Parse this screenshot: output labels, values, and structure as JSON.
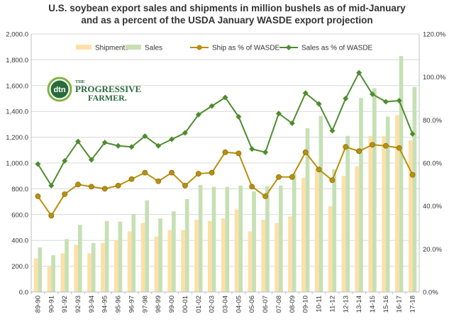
{
  "chart_data": {
    "type": "bar",
    "title_lines": [
      "U.S. soybean export sales and shipments in million bushels as of mid-January",
      "and as a percent of the USDA January WASDE  export projection"
    ],
    "categories": [
      "89-90",
      "90-91",
      "91-92",
      "92-93",
      "93-94",
      "94-95",
      "95-96",
      "96-97",
      "97-98",
      "98-99",
      "99-00",
      "00-01",
      "01-02",
      "02-03",
      "03-04",
      "04-05",
      "05-06",
      "06-07",
      "07-08",
      "08-09",
      "09-10",
      "10-11",
      "11-12",
      "12-13",
      "13-14",
      "14-15",
      "15-16",
      "16-17",
      "17-18"
    ],
    "left_axis": {
      "min": 0,
      "max": 2000,
      "step": 200,
      "tick_labels": [
        "0.0",
        "200.0",
        "400.0",
        "600.0",
        "800.0",
        "1,000.0",
        "1,200.0",
        "1,400.0",
        "1,600.0",
        "1,800.0",
        "2,000.0"
      ]
    },
    "right_axis": {
      "min": 0,
      "max": 120,
      "step": 20,
      "tick_labels": [
        "0.0%",
        "20.0%",
        "40.0%",
        "60.0%",
        "80.0%",
        "100.0%",
        "120.0%"
      ]
    },
    "series": [
      {
        "name": "Shipments",
        "kind": "bar",
        "axis": "left",
        "color": "#fde0a8",
        "values": [
          260,
          200,
          300,
          365,
          300,
          380,
          400,
          470,
          535,
          430,
          480,
          480,
          560,
          550,
          570,
          640,
          470,
          560,
          535,
          585,
          885,
          950,
          665,
          900,
          975,
          1210,
          1210,
          1370,
          1175
        ]
      },
      {
        "name": "Sales",
        "kind": "bar",
        "axis": "left",
        "color": "#c6e0b4",
        "values": [
          345,
          285,
          410,
          520,
          380,
          550,
          545,
          605,
          710,
          570,
          625,
          720,
          830,
          815,
          815,
          825,
          780,
          820,
          825,
          920,
          1270,
          1365,
          950,
          1210,
          1505,
          1580,
          1360,
          1830,
          1590
        ]
      },
      {
        "name": "Ship as % of WASDE",
        "kind": "line",
        "axis": "right",
        "color": "#b8900c",
        "values": [
          44.5,
          35.5,
          45.5,
          50,
          49,
          48,
          49.5,
          52.5,
          55.5,
          51.5,
          55.5,
          49.5,
          55,
          55.5,
          65,
          64.5,
          49,
          44.5,
          53.5,
          53.5,
          65,
          57,
          52,
          67.5,
          65.5,
          68.5,
          68,
          67,
          54.5
        ]
      },
      {
        "name": "Sales as % of WASDE",
        "kind": "line",
        "axis": "right",
        "color": "#4e8c2f",
        "values": [
          59.5,
          49.5,
          61,
          70,
          61.5,
          69.5,
          68,
          67.5,
          72.5,
          68,
          71,
          74,
          82.5,
          86.5,
          90.5,
          81.5,
          66.5,
          65,
          83,
          78.5,
          92.5,
          87.5,
          75,
          90,
          102,
          92,
          88.5,
          89,
          73.5
        ]
      }
    ],
    "legend_position": "top",
    "grid": "horizontal"
  },
  "logo": {
    "brand": "dtn",
    "line1": "THE",
    "line2": "PROGRESSIVE",
    "line3": "FARMER."
  }
}
